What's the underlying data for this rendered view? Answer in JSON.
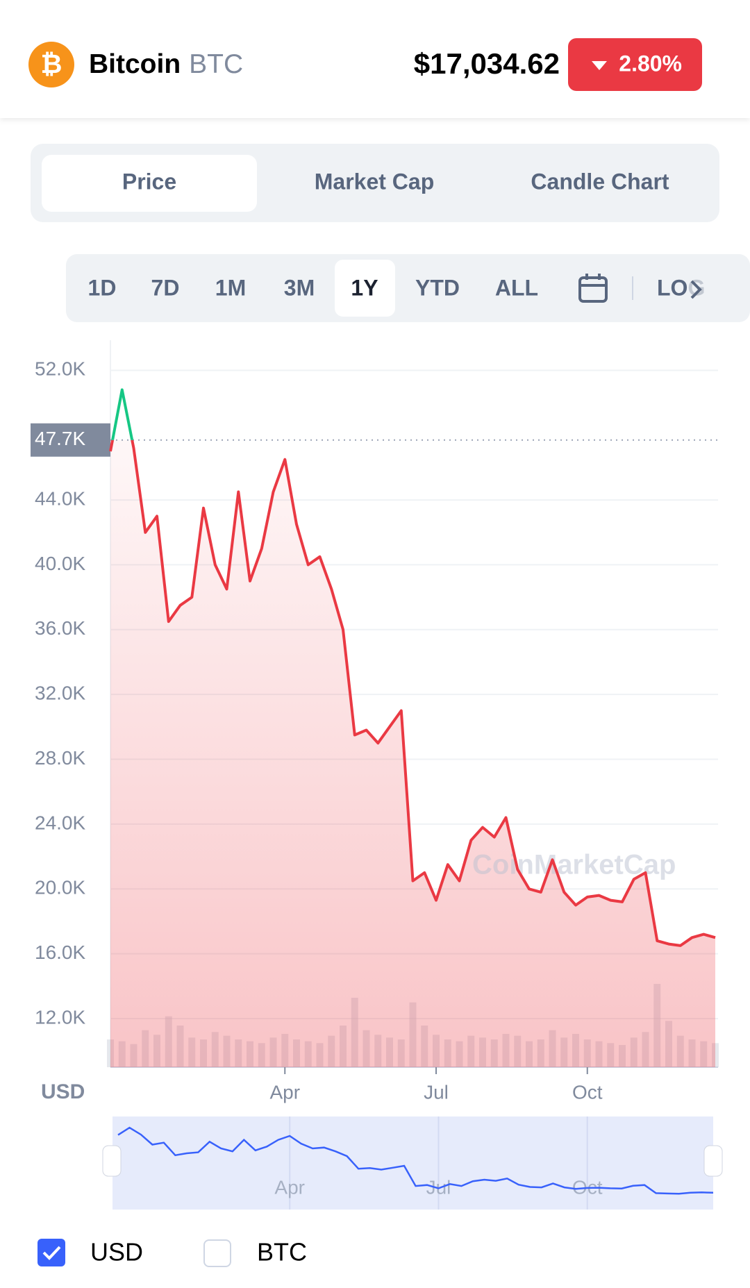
{
  "header": {
    "name": "Bitcoin",
    "symbol": "BTC",
    "price": "$17,034.62",
    "change": "2.80%"
  },
  "tabs": [
    "Price",
    "Market Cap",
    "Candle Chart"
  ],
  "ranges": [
    "1D",
    "7D",
    "1M",
    "3M",
    "1Y",
    "YTD",
    "ALL"
  ],
  "log_label": "LOG",
  "chart_data": {
    "type": "line",
    "categories": [
      null,
      null,
      null,
      null,
      null,
      null,
      null,
      null,
      null,
      null,
      null,
      null,
      null,
      null,
      null,
      "Apr",
      null,
      null,
      null,
      null,
      null,
      null,
      null,
      null,
      null,
      null,
      null,
      null,
      "Jul",
      null,
      null,
      null,
      null,
      null,
      null,
      null,
      null,
      null,
      null,
      null,
      null,
      "Oct",
      null,
      null,
      null,
      null,
      null,
      null,
      null,
      null,
      null,
      null,
      null
    ],
    "values": [
      47000,
      50800,
      47200,
      42000,
      43000,
      36500,
      37500,
      38000,
      43500,
      40000,
      38500,
      44500,
      39000,
      41000,
      44500,
      46500,
      42500,
      40000,
      40500,
      38500,
      36000,
      29500,
      29800,
      29000,
      30000,
      31000,
      20500,
      21000,
      19300,
      21500,
      20500,
      23000,
      23800,
      23200,
      24400,
      21200,
      20000,
      19800,
      21800,
      19800,
      19000,
      19500,
      19600,
      19300,
      19200,
      20600,
      21000,
      16800,
      16600,
      16500,
      17000,
      17200,
      17000
    ],
    "volume": [
      30,
      28,
      25,
      40,
      35,
      55,
      45,
      32,
      30,
      38,
      34,
      30,
      28,
      26,
      32,
      36,
      30,
      28,
      26,
      34,
      45,
      75,
      40,
      35,
      32,
      30,
      70,
      45,
      35,
      30,
      28,
      34,
      32,
      30,
      36,
      34,
      28,
      30,
      40,
      32,
      36,
      30,
      28,
      26,
      24,
      32,
      38,
      90,
      50,
      34,
      30,
      28,
      26
    ],
    "color": "#ea3943",
    "up_color": "#16c784",
    "navigator_color": "#3861fb",
    "ylim": [
      9000,
      53000
    ],
    "yticks": [
      {
        "value": 12000,
        "label": "12.0K"
      },
      {
        "value": 16000,
        "label": "16.0K"
      },
      {
        "value": 20000,
        "label": "20.0K"
      },
      {
        "value": 24000,
        "label": "24.0K"
      },
      {
        "value": 28000,
        "label": "28.0K"
      },
      {
        "value": 32000,
        "label": "32.0K"
      },
      {
        "value": 36000,
        "label": "36.0K"
      },
      {
        "value": 40000,
        "label": "40.0K"
      },
      {
        "value": 44000,
        "label": "44.0K"
      },
      {
        "value": 52000,
        "label": "52.0K"
      }
    ],
    "reference": {
      "value": 47700,
      "label": "47.7K"
    },
    "y_axis_label": "USD",
    "watermark": "CoinMarketCap",
    "grid": true
  },
  "currencies": [
    "USD",
    "BTC"
  ]
}
